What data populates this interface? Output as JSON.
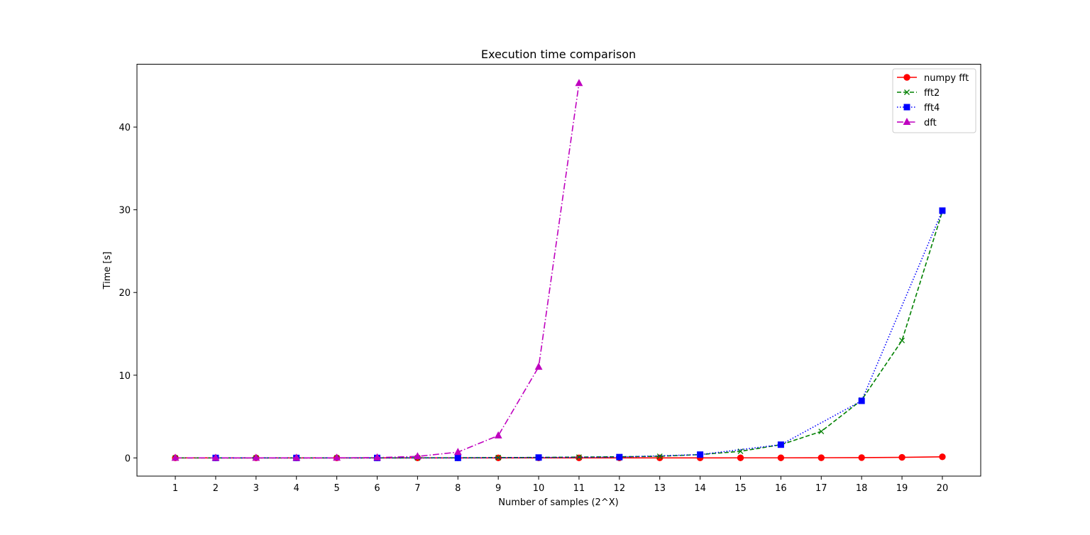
{
  "chart_data": {
    "type": "line",
    "title": "Execution time comparison",
    "xlabel": "Number of samples (2^X)",
    "ylabel": "Time [s]",
    "xlim": [
      0.05,
      20.95
    ],
    "ylim": [
      -2.2,
      47.6
    ],
    "x_ticks": [
      1,
      2,
      3,
      4,
      5,
      6,
      7,
      8,
      9,
      10,
      11,
      12,
      13,
      14,
      15,
      16,
      17,
      18,
      19,
      20
    ],
    "y_ticks": [
      0,
      10,
      20,
      30,
      40
    ],
    "grid": false,
    "legend_position": "top-right",
    "series": [
      {
        "name": "numpy fft",
        "color": "#ff0000",
        "linestyle": "solid",
        "marker": "circle",
        "x": [
          1,
          2,
          3,
          4,
          5,
          6,
          7,
          8,
          9,
          10,
          11,
          12,
          13,
          14,
          15,
          16,
          17,
          18,
          19,
          20
        ],
        "y": [
          0,
          0,
          0,
          0,
          0,
          0,
          0,
          0,
          0,
          0,
          0,
          0,
          0,
          0,
          0.01,
          0.01,
          0.02,
          0.04,
          0.07,
          0.13
        ]
      },
      {
        "name": "fft2",
        "color": "#008000",
        "linestyle": "dashed",
        "marker": "x",
        "x": [
          1,
          2,
          3,
          4,
          5,
          6,
          7,
          8,
          9,
          10,
          11,
          12,
          13,
          14,
          15,
          16,
          17,
          18,
          19,
          20
        ],
        "y": [
          0,
          0,
          0,
          0,
          0,
          0,
          0.01,
          0.02,
          0.04,
          0.06,
          0.1,
          0.14,
          0.2,
          0.4,
          0.8,
          1.6,
          3.2,
          7.0,
          14.2,
          29.8
        ]
      },
      {
        "name": "fft4",
        "color": "#0000ff",
        "linestyle": "dotted",
        "marker": "square",
        "x": [
          2,
          4,
          6,
          8,
          10,
          12,
          14,
          16,
          18,
          20
        ],
        "y": [
          0,
          0,
          0,
          0,
          0.05,
          0.1,
          0.4,
          1.6,
          6.9,
          29.9
        ]
      },
      {
        "name": "dft",
        "color": "#bf00bf",
        "linestyle": "dashdot",
        "marker": "triangle",
        "x": [
          1,
          2,
          3,
          4,
          5,
          6,
          7,
          8,
          9,
          10,
          11
        ],
        "y": [
          0,
          0,
          0,
          0,
          0.01,
          0.04,
          0.18,
          0.7,
          2.7,
          11.0,
          45.3
        ]
      }
    ]
  }
}
